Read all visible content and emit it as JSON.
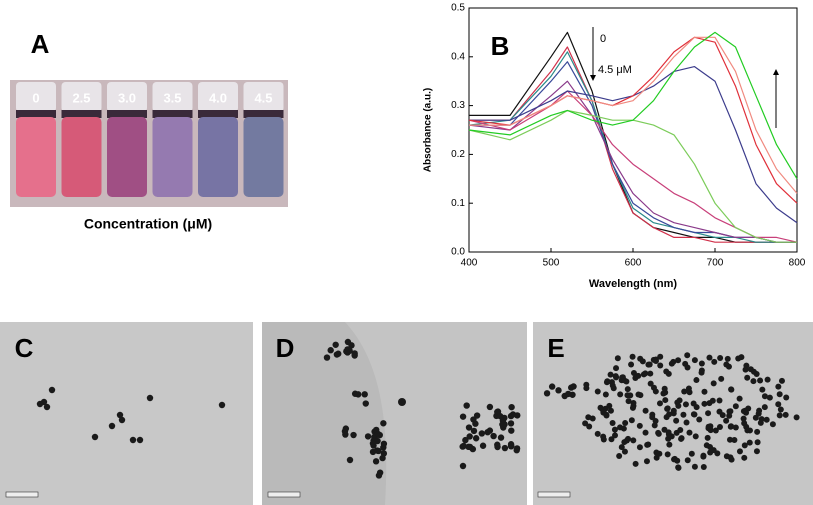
{
  "panels": {
    "A": {
      "label": "A",
      "vials": [
        "0",
        "2.5",
        "3.0",
        "3.5",
        "4.0",
        "4.5"
      ],
      "caption": "Concentration (μM)"
    },
    "C": {
      "label": "C"
    },
    "D": {
      "label": "D"
    },
    "E": {
      "label": "E"
    }
  },
  "chart_data": {
    "type": "line",
    "panel_label": "B",
    "x_label": "Wavelength (nm)",
    "y_label": "Absorbance (a.u.)",
    "annotations": [
      "0",
      "4.5 μM"
    ],
    "x": [
      400,
      450,
      500,
      520,
      550,
      575,
      600,
      625,
      650,
      675,
      700,
      725,
      750,
      775,
      800
    ],
    "xlim": [
      400,
      800
    ],
    "xticks": [
      400,
      500,
      600,
      700,
      800
    ],
    "ylim": [
      0,
      0.5
    ],
    "yticks": [
      {
        "value": 0,
        "label": "0.0"
      },
      0.1,
      0.2,
      0.3,
      0.4,
      0.5
    ],
    "series": [
      {
        "color": "#111111",
        "values": [
          0.28,
          0.28,
          0.4,
          0.45,
          0.33,
          0.18,
          0.08,
          0.05,
          0.04,
          0.03,
          0.03,
          0.02,
          0.02,
          0.02,
          0.02
        ]
      },
      {
        "color": "#d0304a",
        "values": [
          0.27,
          0.27,
          0.37,
          0.42,
          0.31,
          0.17,
          0.08,
          0.05,
          0.03,
          0.03,
          0.02,
          0.02,
          0.02,
          0.02,
          0.02
        ]
      },
      {
        "color": "#2a8a8a",
        "values": [
          0.26,
          0.27,
          0.36,
          0.41,
          0.31,
          0.18,
          0.09,
          0.06,
          0.05,
          0.04,
          0.03,
          0.03,
          0.02,
          0.02,
          0.02
        ]
      },
      {
        "color": "#3a4a9a",
        "values": [
          0.26,
          0.26,
          0.35,
          0.39,
          0.3,
          0.18,
          0.1,
          0.07,
          0.05,
          0.04,
          0.04,
          0.03,
          0.03,
          0.02,
          0.02
        ]
      },
      {
        "color": "#8a3a8a",
        "values": [
          0.26,
          0.25,
          0.32,
          0.35,
          0.28,
          0.19,
          0.12,
          0.08,
          0.06,
          0.05,
          0.04,
          0.03,
          0.03,
          0.02,
          0.02
        ]
      },
      {
        "color": "#c8407a",
        "values": [
          0.27,
          0.25,
          0.3,
          0.33,
          0.28,
          0.22,
          0.18,
          0.15,
          0.12,
          0.1,
          0.07,
          0.05,
          0.03,
          0.03,
          0.02
        ]
      },
      {
        "color": "#7ccc5a",
        "values": [
          0.25,
          0.23,
          0.27,
          0.29,
          0.28,
          0.27,
          0.27,
          0.26,
          0.24,
          0.18,
          0.1,
          0.05,
          0.03,
          0.02,
          0.02
        ]
      },
      {
        "color": "#3c3c8c",
        "values": [
          0.27,
          0.27,
          0.31,
          0.33,
          0.32,
          0.31,
          0.32,
          0.34,
          0.37,
          0.38,
          0.35,
          0.25,
          0.14,
          0.09,
          0.06
        ]
      },
      {
        "color": "#e0303a",
        "values": [
          0.27,
          0.26,
          0.3,
          0.32,
          0.31,
          0.3,
          0.32,
          0.36,
          0.41,
          0.44,
          0.43,
          0.34,
          0.22,
          0.14,
          0.1
        ]
      },
      {
        "color": "#f08a80",
        "values": [
          0.26,
          0.26,
          0.3,
          0.32,
          0.31,
          0.3,
          0.31,
          0.35,
          0.4,
          0.44,
          0.44,
          0.37,
          0.25,
          0.17,
          0.12
        ]
      },
      {
        "color": "#22cc22",
        "values": [
          0.25,
          0.24,
          0.28,
          0.29,
          0.27,
          0.26,
          0.27,
          0.31,
          0.37,
          0.42,
          0.45,
          0.42,
          0.32,
          0.22,
          0.15
        ]
      }
    ]
  }
}
